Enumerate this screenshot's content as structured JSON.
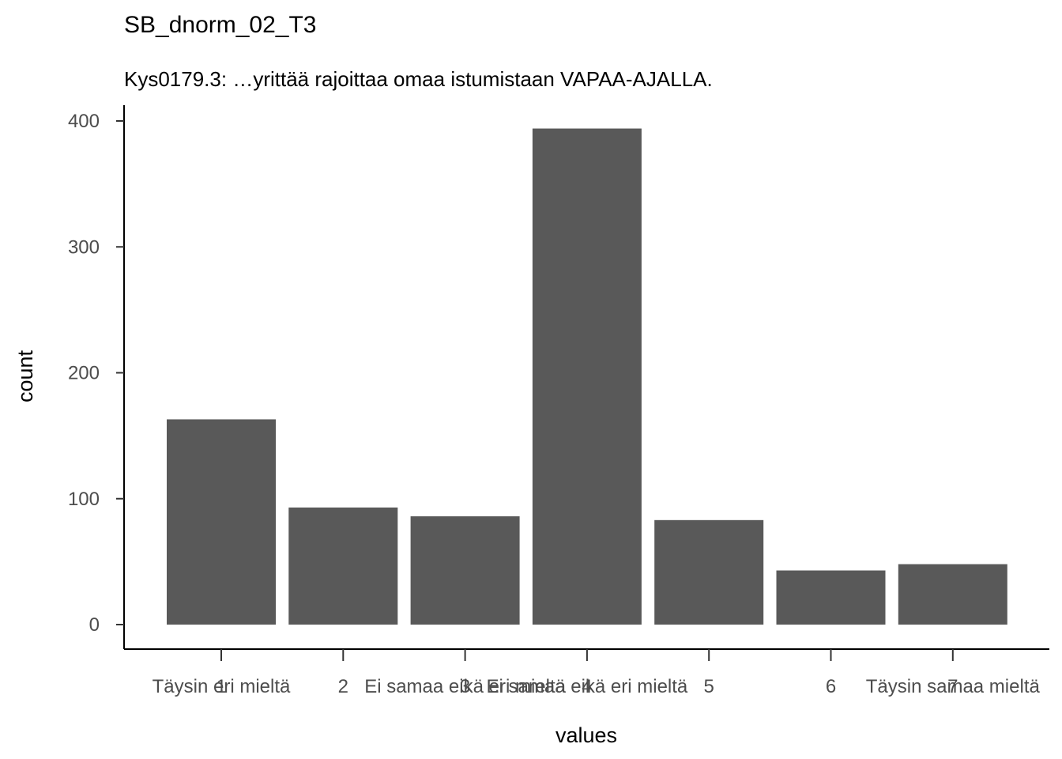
{
  "chart_data": {
    "type": "bar",
    "title": "SB_dnorm_02_T3",
    "subtitle": "Kys0179.3: …yrittää rajoittaa omaa istumistaan VAPAA-AJALLA.",
    "xlabel": "values",
    "ylabel": "count",
    "categories": [
      "1",
      "2",
      "3",
      "4",
      "5",
      "6",
      "7"
    ],
    "category_labels": [
      [
        "Täysin eri mieltä",
        "1"
      ],
      [
        "2"
      ],
      [
        "3",
        "Ei samaa eikä eri mieltä"
      ],
      [
        "Ei samaa eikä eri mieltä",
        "4"
      ],
      [
        "5"
      ],
      [
        "6"
      ],
      [
        "Täysin samaa mieltä",
        "7"
      ]
    ],
    "values": [
      163,
      93,
      86,
      394,
      83,
      43,
      48
    ],
    "ylim": [
      0,
      420
    ],
    "yticks": [
      0,
      100,
      200,
      300,
      400
    ],
    "grid": false,
    "legend": "none",
    "colors": {
      "bar": "#595959",
      "background": "#ffffff",
      "axis": "#000000",
      "tick_text": "#4d4d4d"
    }
  }
}
